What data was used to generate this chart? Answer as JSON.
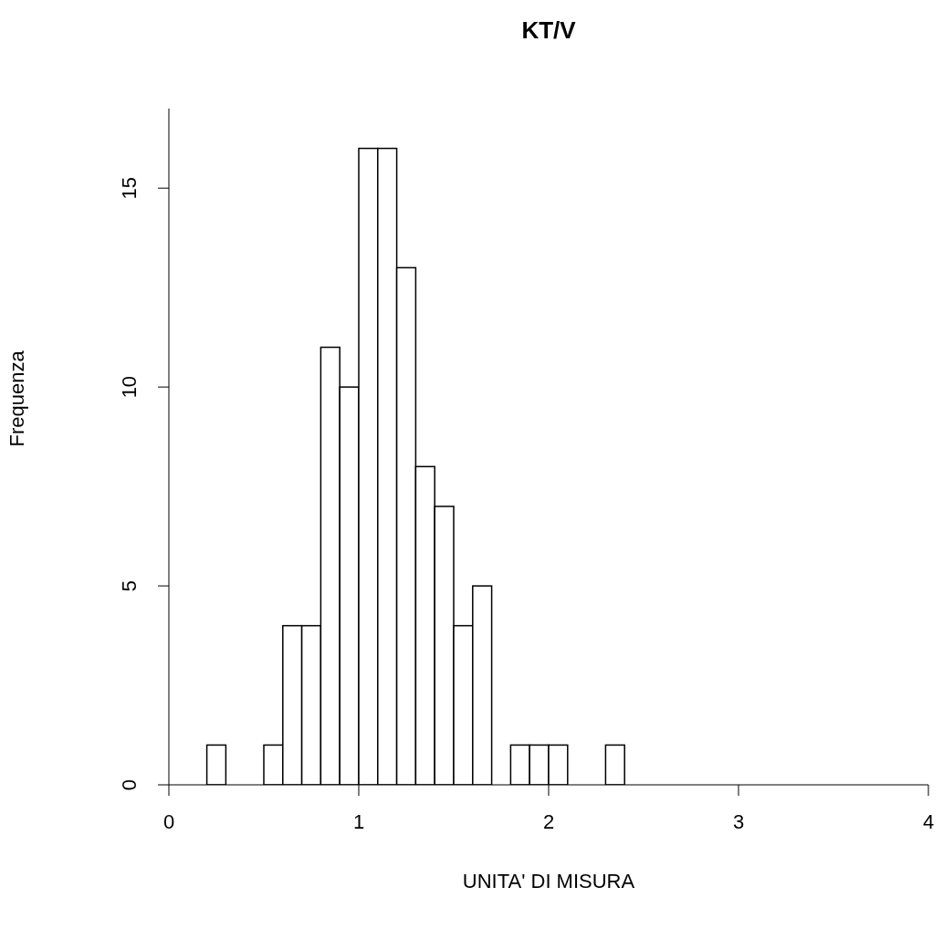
{
  "chart_data": {
    "type": "histogram",
    "title": "KT/V",
    "xlabel": "UNITA' DI MISURA",
    "ylabel": "Frequenza",
    "bins": [
      0.2,
      0.3,
      0.4,
      0.5,
      0.6,
      0.7,
      0.8,
      0.9,
      1.0,
      1.1,
      1.2,
      1.3,
      1.4,
      1.5,
      1.6,
      1.7,
      1.8,
      1.9,
      2.0,
      2.1,
      2.2,
      2.3,
      2.4
    ],
    "values": [
      1,
      0,
      0,
      1,
      4,
      4,
      11,
      10,
      16,
      16,
      13,
      8,
      7,
      4,
      5,
      0,
      1,
      1,
      1,
      0,
      0,
      1
    ],
    "color": "#ffffff",
    "xlim": [
      0,
      4
    ],
    "xticks": [
      0,
      1,
      2,
      3,
      4
    ],
    "ylim": [
      0,
      17
    ],
    "yticks": [
      0,
      5,
      10,
      15
    ],
    "grid": false,
    "legend": false
  }
}
